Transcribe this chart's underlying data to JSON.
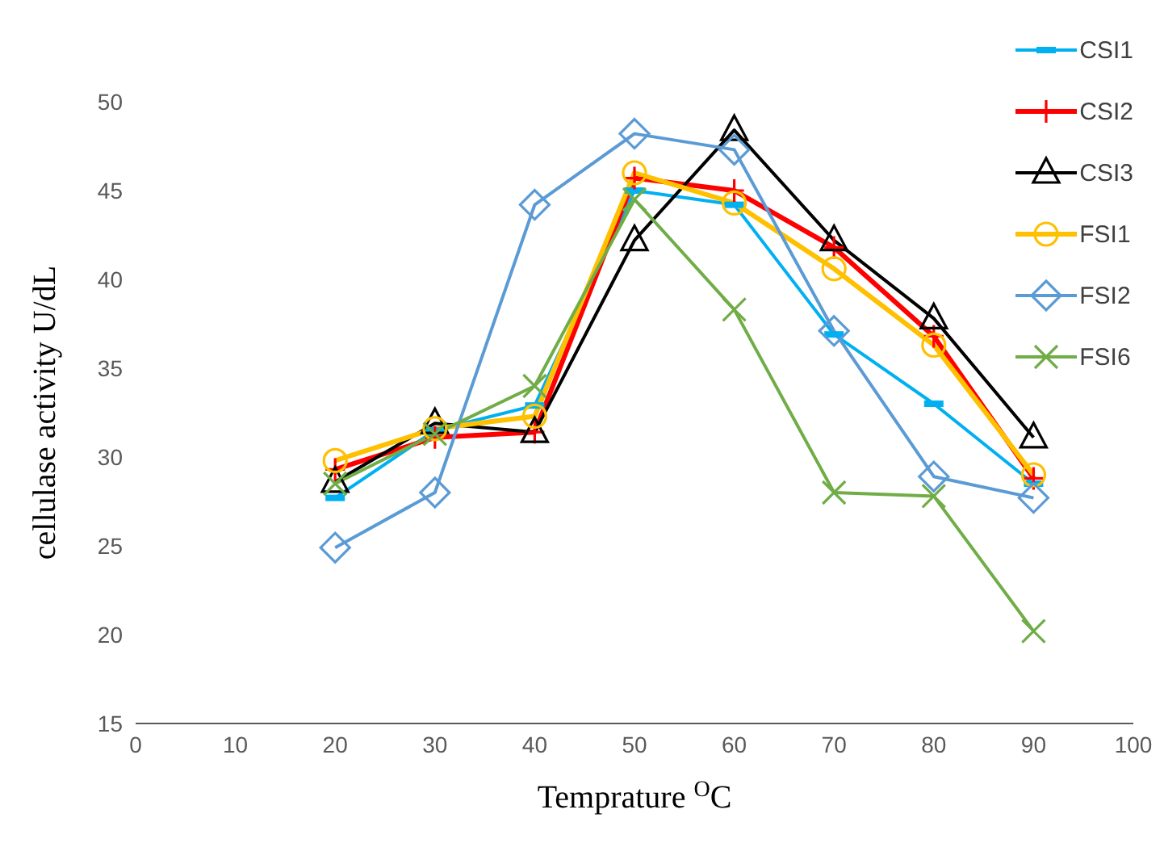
{
  "chart_data": {
    "type": "line",
    "xlabel": "Temprature $^{O}$C",
    "ylabel": "cellulase activity U/dL",
    "x": [
      20,
      30,
      40,
      50,
      60,
      70,
      80,
      90
    ],
    "xlim": [
      0,
      100
    ],
    "xticks": [
      0,
      10,
      20,
      30,
      40,
      50,
      60,
      70,
      80,
      90,
      100
    ],
    "ylim": [
      15,
      50
    ],
    "yticks": [
      15,
      20,
      25,
      30,
      35,
      40,
      45,
      50
    ],
    "grid": false,
    "legend": "top right",
    "line_style": "solid",
    "series": [
      {
        "name": "CSI1",
        "color": "#00b0f0",
        "marker": "square",
        "values": [
          27.7,
          31.5,
          32.9,
          45.0,
          44.2,
          36.9,
          33.0,
          28.5
        ]
      },
      {
        "name": "CSI2",
        "color": "#ff0000",
        "marker": "plus",
        "values": [
          29.3,
          31.1,
          31.4,
          45.7,
          45.0,
          41.8,
          36.8,
          28.8
        ]
      },
      {
        "name": "CSI3",
        "color": "#000000",
        "marker": "triangle",
        "values": [
          28.6,
          31.9,
          31.4,
          42.2,
          48.4,
          42.2,
          37.8,
          31.1
        ]
      },
      {
        "name": "FSI1",
        "color": "#ffc000",
        "marker": "circle",
        "values": [
          29.8,
          31.6,
          32.3,
          46.0,
          44.3,
          40.6,
          36.3,
          29.0
        ]
      },
      {
        "name": "FSI2",
        "color": "#5b9bd5",
        "marker": "diamond",
        "values": [
          24.9,
          28.0,
          44.2,
          48.2,
          47.3,
          37.1,
          28.9,
          27.7
        ]
      },
      {
        "name": "FSI6",
        "color": "#70ad47",
        "marker": "cross",
        "values": [
          28.5,
          31.3,
          34.0,
          44.5,
          38.3,
          28.0,
          27.8,
          20.2
        ]
      }
    ]
  }
}
